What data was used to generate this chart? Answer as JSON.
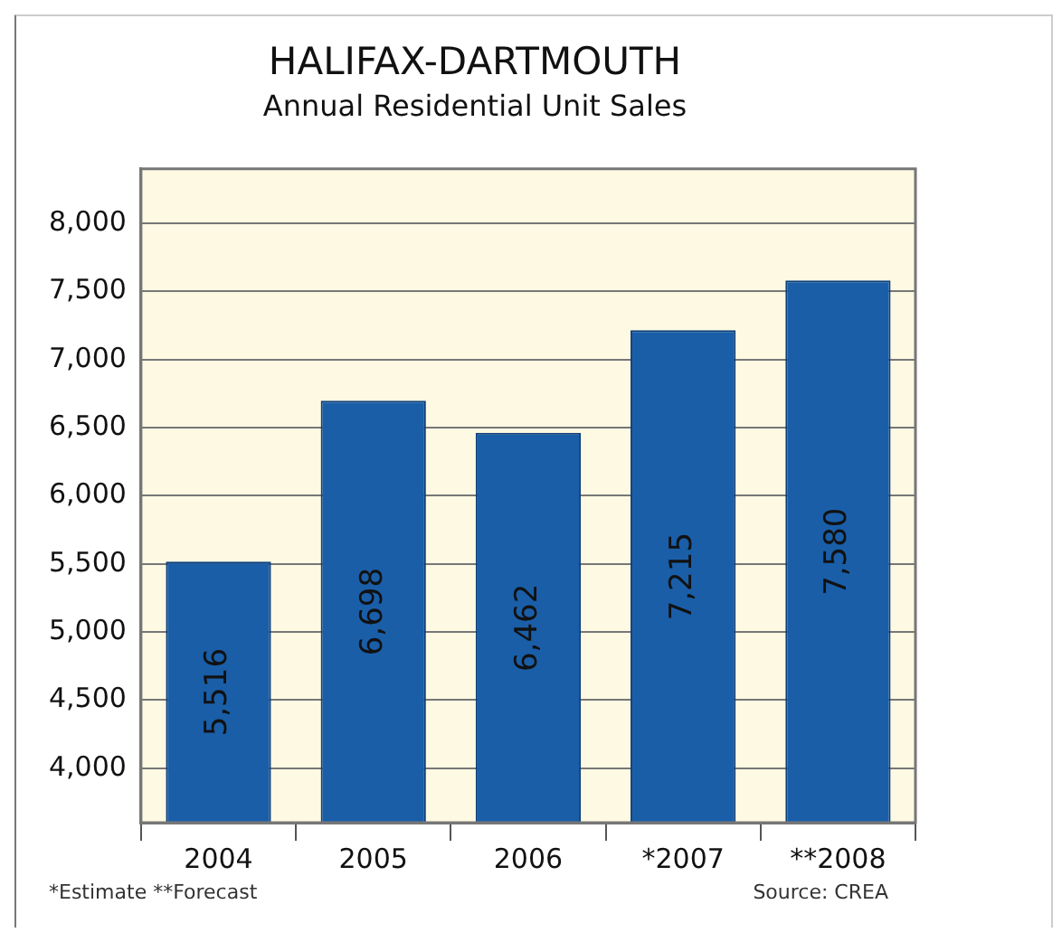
{
  "chart_data": {
    "type": "bar",
    "title": "HALIFAX-DARTMOUTH",
    "subtitle": "Annual Residential Unit Sales",
    "categories": [
      "2004",
      "2005",
      "2006",
      "*2007",
      "**2008"
    ],
    "values": [
      5516,
      6698,
      6462,
      7215,
      7580
    ],
    "value_labels": [
      "5,516",
      "6,698",
      "6,462",
      "7,215",
      "7,580"
    ],
    "color": "#1a5ea8",
    "ylim": [
      3600,
      8400
    ],
    "yticks": [
      {
        "value": 4000,
        "label": "4,000"
      },
      {
        "value": 4500,
        "label": "4,500"
      },
      {
        "value": 5000,
        "label": "5,000"
      },
      {
        "value": 5500,
        "label": "5,500"
      },
      {
        "value": 6000,
        "label": "6,000"
      },
      {
        "value": 6500,
        "label": "6,500"
      },
      {
        "value": 7000,
        "label": "7,000"
      },
      {
        "value": 7500,
        "label": "7,500"
      },
      {
        "value": 8000,
        "label": "8,000"
      }
    ],
    "grid": "y",
    "legend": false,
    "annotations": [
      "*Estimate  **Forecast",
      "Source: CREA"
    ]
  }
}
